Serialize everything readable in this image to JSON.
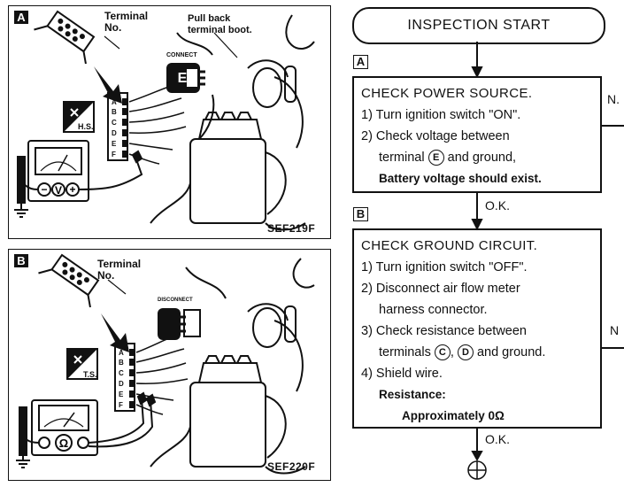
{
  "panelA": {
    "tag": "A",
    "terminal_label": "Terminal\nNo.",
    "boot_label": "Pull back\nterminal boot.",
    "connector_state": "CONNECT",
    "hs_label": "H.S.",
    "pins": [
      "A",
      "B",
      "C",
      "D",
      "E",
      "F"
    ],
    "meter_symbol": "V",
    "code": "SEF219F"
  },
  "panelB": {
    "tag": "B",
    "terminal_label": "Terminal\nNo.",
    "connector_state": "DISCONNECT",
    "ts_label": "T.S.",
    "pins": [
      "A",
      "B",
      "C",
      "D",
      "E",
      "F"
    ],
    "meter_symbol": "Ω",
    "code": "SEF220F"
  },
  "flow": {
    "start": "INSPECTION START",
    "stepA": {
      "tag": "A",
      "title": "CHECK POWER SOURCE.",
      "line1": "1) Turn ignition switch \"ON\".",
      "line2": "2) Check voltage between",
      "line3_pre": "terminal",
      "line3_term": "E",
      "line3_post": "and ground,",
      "line4": "Battery voltage should exist.",
      "ng": "N."
    },
    "ok1": "O.K.",
    "stepB": {
      "tag": "B",
      "title": "CHECK GROUND CIRCUIT.",
      "line1": "1) Turn ignition switch \"OFF\".",
      "line2": "2) Disconnect air flow meter",
      "line3": "harness connector.",
      "line4": "3) Check resistance between",
      "line5_pre": "terminals",
      "line5_t1": "C",
      "line5_mid": ",",
      "line5_t2": "D",
      "line5_post": "and ground.",
      "line6": "4) Shield wire.",
      "line7": "Resistance:",
      "line8": "Approximately 0Ω",
      "ng": "N"
    },
    "ok2": "O.K."
  }
}
